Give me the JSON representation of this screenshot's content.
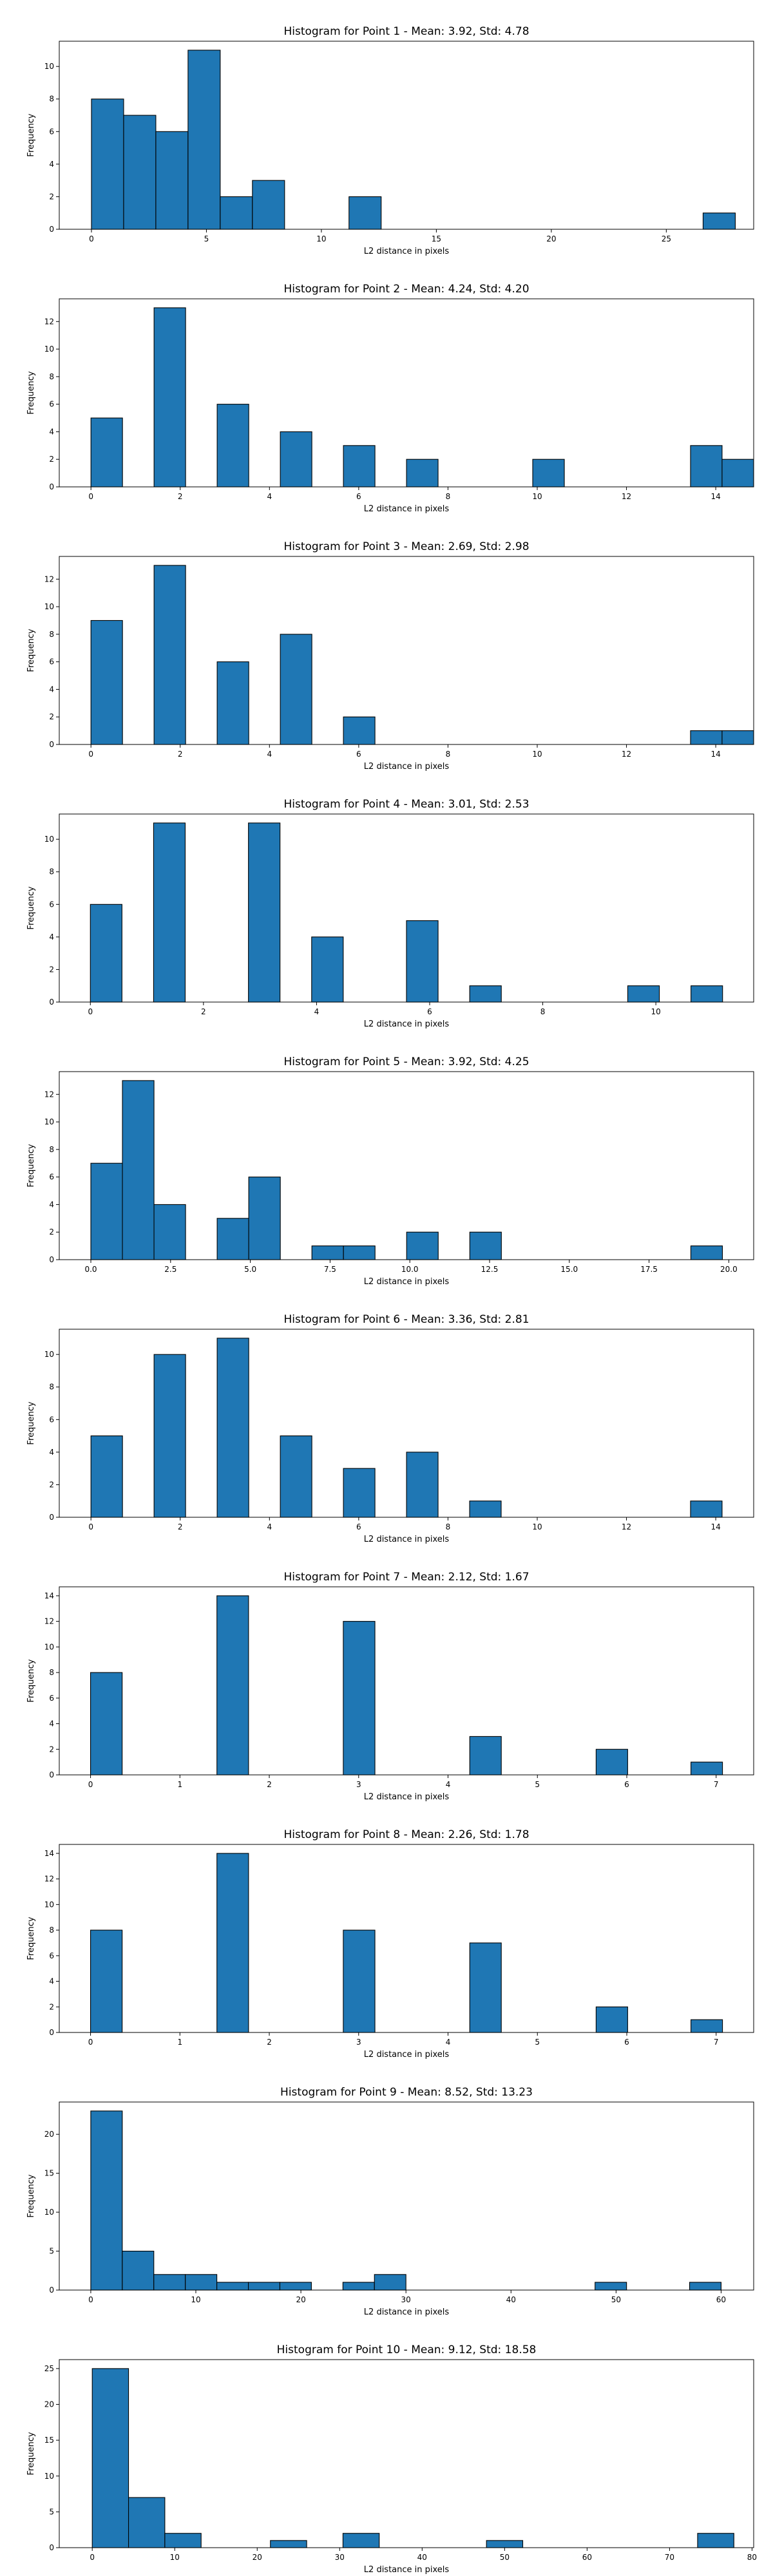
{
  "figure": {
    "background": "#ffffff",
    "bar_color": "#1f77b4",
    "edge_color": "#000000"
  },
  "chart_data": [
    {
      "type": "bar",
      "title": "Histogram for Point 1 - Mean: 3.92, Std: 4.78",
      "xlabel": "L2 distance in pixels",
      "ylabel": "Frequency",
      "xlim": [
        -1.4,
        28.8
      ],
      "ylim": [
        0,
        11.55
      ],
      "xticks": [
        0,
        5,
        10,
        15,
        20,
        25
      ],
      "xtick_labels": [
        "0",
        "5",
        "10",
        "15",
        "20",
        "25"
      ],
      "yticks": [
        0,
        2,
        4,
        6,
        8,
        10
      ],
      "ytick_labels": [
        "0",
        "2",
        "4",
        "6",
        "8",
        "10"
      ],
      "bins": [
        {
          "x0": 0.0,
          "x1": 1.4,
          "count": 8
        },
        {
          "x0": 1.4,
          "x1": 2.8,
          "count": 7
        },
        {
          "x0": 2.8,
          "x1": 4.2,
          "count": 6
        },
        {
          "x0": 4.2,
          "x1": 5.6,
          "count": 11
        },
        {
          "x0": 5.6,
          "x1": 7.0,
          "count": 2
        },
        {
          "x0": 7.0,
          "x1": 8.4,
          "count": 3
        },
        {
          "x0": 11.2,
          "x1": 12.6,
          "count": 2
        },
        {
          "x0": 26.6,
          "x1": 28.0,
          "count": 1
        }
      ]
    },
    {
      "type": "bar",
      "title": "Histogram for Point 2 - Mean: 4.24, Std: 4.20",
      "xlabel": "L2 distance in pixels",
      "ylabel": "Frequency",
      "xlim": [
        -0.71,
        14.85
      ],
      "ylim": [
        0,
        13.65
      ],
      "xticks": [
        0,
        2,
        4,
        6,
        8,
        10,
        12,
        14
      ],
      "xtick_labels": [
        "0",
        "2",
        "4",
        "6",
        "8",
        "10",
        "12",
        "14"
      ],
      "yticks": [
        0,
        2,
        4,
        6,
        8,
        10,
        12
      ],
      "ytick_labels": [
        "0",
        "2",
        "4",
        "6",
        "8",
        "10",
        "12"
      ],
      "bins": [
        {
          "x0": 0.0,
          "x1": 0.707,
          "count": 5
        },
        {
          "x0": 1.414,
          "x1": 2.121,
          "count": 13
        },
        {
          "x0": 2.828,
          "x1": 3.536,
          "count": 6
        },
        {
          "x0": 4.243,
          "x1": 4.95,
          "count": 4
        },
        {
          "x0": 5.657,
          "x1": 6.364,
          "count": 3
        },
        {
          "x0": 7.071,
          "x1": 7.778,
          "count": 2
        },
        {
          "x0": 9.899,
          "x1": 10.607,
          "count": 2
        },
        {
          "x0": 13.435,
          "x1": 14.142,
          "count": 3
        },
        {
          "x0": 14.142,
          "x1": 14.849,
          "count": 2
        }
      ]
    },
    {
      "type": "bar",
      "title": "Histogram for Point 3 - Mean: 2.69, Std: 2.98",
      "xlabel": "L2 distance in pixels",
      "ylabel": "Frequency",
      "xlim": [
        -0.71,
        14.85
      ],
      "ylim": [
        0,
        13.65
      ],
      "xticks": [
        0,
        2,
        4,
        6,
        8,
        10,
        12,
        14
      ],
      "xtick_labels": [
        "0",
        "2",
        "4",
        "6",
        "8",
        "10",
        "12",
        "14"
      ],
      "yticks": [
        0,
        2,
        4,
        6,
        8,
        10,
        12
      ],
      "ytick_labels": [
        "0",
        "2",
        "4",
        "6",
        "8",
        "10",
        "12"
      ],
      "bins": [
        {
          "x0": 0.0,
          "x1": 0.707,
          "count": 9
        },
        {
          "x0": 1.414,
          "x1": 2.121,
          "count": 13
        },
        {
          "x0": 2.828,
          "x1": 3.536,
          "count": 6
        },
        {
          "x0": 4.243,
          "x1": 4.95,
          "count": 8
        },
        {
          "x0": 5.657,
          "x1": 6.364,
          "count": 2
        },
        {
          "x0": 13.435,
          "x1": 14.142,
          "count": 1
        },
        {
          "x0": 14.142,
          "x1": 14.849,
          "count": 1
        }
      ]
    },
    {
      "type": "bar",
      "title": "Histogram for Point 4 - Mean: 3.01, Std: 2.53",
      "xlabel": "L2 distance in pixels",
      "ylabel": "Frequency",
      "xlim": [
        -0.55,
        11.73
      ],
      "ylim": [
        0,
        11.55
      ],
      "xticks": [
        0,
        2,
        4,
        6,
        8,
        10
      ],
      "xtick_labels": [
        "0",
        "2",
        "4",
        "6",
        "8",
        "10"
      ],
      "yticks": [
        0,
        2,
        4,
        6,
        8,
        10
      ],
      "ytick_labels": [
        "0",
        "2",
        "4",
        "6",
        "8",
        "10"
      ],
      "bins": [
        {
          "x0": 0.0,
          "x1": 0.559,
          "count": 6
        },
        {
          "x0": 1.118,
          "x1": 1.677,
          "count": 11
        },
        {
          "x0": 2.795,
          "x1": 3.354,
          "count": 11
        },
        {
          "x0": 3.913,
          "x1": 4.472,
          "count": 4
        },
        {
          "x0": 5.59,
          "x1": 6.149,
          "count": 5
        },
        {
          "x0": 6.708,
          "x1": 7.267,
          "count": 1
        },
        {
          "x0": 9.503,
          "x1": 10.062,
          "count": 1
        },
        {
          "x0": 10.621,
          "x1": 11.18,
          "count": 1
        }
      ]
    },
    {
      "type": "bar",
      "title": "Histogram for Point 5 - Mean: 3.92, Std: 4.25",
      "xlabel": "L2 distance in pixels",
      "ylabel": "Frequency",
      "xlim": [
        -0.99,
        20.78
      ],
      "ylim": [
        0,
        13.65
      ],
      "xticks": [
        0,
        2.5,
        5,
        7.5,
        10,
        12.5,
        15,
        17.5,
        20
      ],
      "xtick_labels": [
        "0.0",
        "2.5",
        "5.0",
        "7.5",
        "10.0",
        "12.5",
        "15.0",
        "17.5",
        "20.0"
      ],
      "yticks": [
        0,
        2,
        4,
        6,
        8,
        10,
        12
      ],
      "ytick_labels": [
        "0",
        "2",
        "4",
        "6",
        "8",
        "10",
        "12"
      ],
      "bins": [
        {
          "x0": 0.0,
          "x1": 0.99,
          "count": 7
        },
        {
          "x0": 0.99,
          "x1": 1.98,
          "count": 13
        },
        {
          "x0": 1.98,
          "x1": 2.97,
          "count": 4
        },
        {
          "x0": 3.96,
          "x1": 4.95,
          "count": 3
        },
        {
          "x0": 4.95,
          "x1": 5.94,
          "count": 6
        },
        {
          "x0": 6.93,
          "x1": 7.92,
          "count": 1
        },
        {
          "x0": 7.92,
          "x1": 8.91,
          "count": 1
        },
        {
          "x0": 9.9,
          "x1": 10.89,
          "count": 2
        },
        {
          "x0": 11.88,
          "x1": 12.87,
          "count": 2
        },
        {
          "x0": 18.81,
          "x1": 19.8,
          "count": 1
        }
      ]
    },
    {
      "type": "bar",
      "title": "Histogram for Point 6 - Mean: 3.36, Std: 2.81",
      "xlabel": "L2 distance in pixels",
      "ylabel": "Frequency",
      "xlim": [
        -0.71,
        14.85
      ],
      "ylim": [
        0,
        11.55
      ],
      "xticks": [
        0,
        2,
        4,
        6,
        8,
        10,
        12,
        14
      ],
      "xtick_labels": [
        "0",
        "2",
        "4",
        "6",
        "8",
        "10",
        "12",
        "14"
      ],
      "yticks": [
        0,
        2,
        4,
        6,
        8,
        10
      ],
      "ytick_labels": [
        "0",
        "2",
        "4",
        "6",
        "8",
        "10"
      ],
      "bins": [
        {
          "x0": 0.0,
          "x1": 0.707,
          "count": 5
        },
        {
          "x0": 1.414,
          "x1": 2.121,
          "count": 10
        },
        {
          "x0": 2.828,
          "x1": 3.536,
          "count": 11
        },
        {
          "x0": 4.243,
          "x1": 4.95,
          "count": 5
        },
        {
          "x0": 5.657,
          "x1": 6.364,
          "count": 3
        },
        {
          "x0": 7.071,
          "x1": 7.778,
          "count": 4
        },
        {
          "x0": 8.485,
          "x1": 9.192,
          "count": 1
        },
        {
          "x0": 13.435,
          "x1": 14.142,
          "count": 1
        }
      ]
    },
    {
      "type": "bar",
      "title": "Histogram for Point 7 - Mean: 2.12, Std: 1.67",
      "xlabel": "L2 distance in pixels",
      "ylabel": "Frequency",
      "xlim": [
        -0.35,
        7.42
      ],
      "ylim": [
        0,
        14.7
      ],
      "xticks": [
        0,
        1,
        2,
        3,
        4,
        5,
        6,
        7
      ],
      "xtick_labels": [
        "0",
        "1",
        "2",
        "3",
        "4",
        "5",
        "6",
        "7"
      ],
      "yticks": [
        0,
        2,
        4,
        6,
        8,
        10,
        12,
        14
      ],
      "ytick_labels": [
        "0",
        "2",
        "4",
        "6",
        "8",
        "10",
        "12",
        "14"
      ],
      "bins": [
        {
          "x0": 0.0,
          "x1": 0.354,
          "count": 8
        },
        {
          "x0": 1.414,
          "x1": 1.768,
          "count": 14
        },
        {
          "x0": 2.828,
          "x1": 3.182,
          "count": 12
        },
        {
          "x0": 4.243,
          "x1": 4.596,
          "count": 3
        },
        {
          "x0": 5.657,
          "x1": 6.01,
          "count": 2
        },
        {
          "x0": 6.718,
          "x1": 7.071,
          "count": 1
        }
      ]
    },
    {
      "type": "bar",
      "title": "Histogram for Point 8 - Mean: 2.26, Std: 1.78",
      "xlabel": "L2 distance in pixels",
      "ylabel": "Frequency",
      "xlim": [
        -0.35,
        7.42
      ],
      "ylim": [
        0,
        14.7
      ],
      "xticks": [
        0,
        1,
        2,
        3,
        4,
        5,
        6,
        7
      ],
      "xtick_labels": [
        "0",
        "1",
        "2",
        "3",
        "4",
        "5",
        "6",
        "7"
      ],
      "yticks": [
        0,
        2,
        4,
        6,
        8,
        10,
        12,
        14
      ],
      "ytick_labels": [
        "0",
        "2",
        "4",
        "6",
        "8",
        "10",
        "12",
        "14"
      ],
      "bins": [
        {
          "x0": 0.0,
          "x1": 0.354,
          "count": 8
        },
        {
          "x0": 1.414,
          "x1": 1.768,
          "count": 14
        },
        {
          "x0": 2.828,
          "x1": 3.182,
          "count": 8
        },
        {
          "x0": 4.243,
          "x1": 4.596,
          "count": 7
        },
        {
          "x0": 5.657,
          "x1": 6.01,
          "count": 2
        },
        {
          "x0": 6.718,
          "x1": 7.071,
          "count": 1
        }
      ]
    },
    {
      "type": "bar",
      "title": "Histogram for Point 9 - Mean: 8.52, Std: 13.23",
      "xlabel": "L2 distance in pixels",
      "ylabel": "Frequency",
      "xlim": [
        -3.0,
        63.1
      ],
      "ylim": [
        0,
        24.15
      ],
      "xticks": [
        0,
        10,
        20,
        30,
        40,
        50,
        60
      ],
      "xtick_labels": [
        "0",
        "10",
        "20",
        "30",
        "40",
        "50",
        "60"
      ],
      "yticks": [
        0,
        5,
        10,
        15,
        20
      ],
      "ytick_labels": [
        "0",
        "5",
        "10",
        "15",
        "20"
      ],
      "bins": [
        {
          "x0": 0.0,
          "x1": 3.0,
          "count": 23
        },
        {
          "x0": 3.0,
          "x1": 6.0,
          "count": 5
        },
        {
          "x0": 6.0,
          "x1": 9.0,
          "count": 2
        },
        {
          "x0": 9.0,
          "x1": 12.0,
          "count": 2
        },
        {
          "x0": 12.0,
          "x1": 15.0,
          "count": 1
        },
        {
          "x0": 15.0,
          "x1": 18.0,
          "count": 1
        },
        {
          "x0": 18.0,
          "x1": 21.0,
          "count": 1
        },
        {
          "x0": 24.0,
          "x1": 27.0,
          "count": 1
        },
        {
          "x0": 27.0,
          "x1": 30.0,
          "count": 2
        },
        {
          "x0": 48.0,
          "x1": 51.0,
          "count": 1
        },
        {
          "x0": 57.0,
          "x1": 60.0,
          "count": 1
        }
      ]
    },
    {
      "type": "bar",
      "title": "Histogram for Point 10 - Mean: 9.12, Std: 18.58",
      "xlabel": "L2 distance in pixels",
      "ylabel": "Frequency",
      "xlim": [
        -4.0,
        80.2
      ],
      "ylim": [
        0,
        26.25
      ],
      "xticks": [
        0,
        10,
        20,
        30,
        40,
        50,
        60,
        70,
        80
      ],
      "xtick_labels": [
        "0",
        "10",
        "20",
        "30",
        "40",
        "50",
        "60",
        "70",
        "80"
      ],
      "yticks": [
        0,
        5,
        10,
        15,
        20,
        25
      ],
      "ytick_labels": [
        "0",
        "5",
        "10",
        "15",
        "20",
        "25"
      ],
      "bins": [
        {
          "x0": 0.0,
          "x1": 4.4,
          "count": 25
        },
        {
          "x0": 4.4,
          "x1": 8.8,
          "count": 7
        },
        {
          "x0": 8.8,
          "x1": 13.2,
          "count": 2
        },
        {
          "x0": 21.6,
          "x1": 26.0,
          "count": 1
        },
        {
          "x0": 30.4,
          "x1": 34.8,
          "count": 2
        },
        {
          "x0": 47.8,
          "x1": 52.2,
          "count": 1
        },
        {
          "x0": 73.4,
          "x1": 77.8,
          "count": 2
        }
      ]
    }
  ]
}
